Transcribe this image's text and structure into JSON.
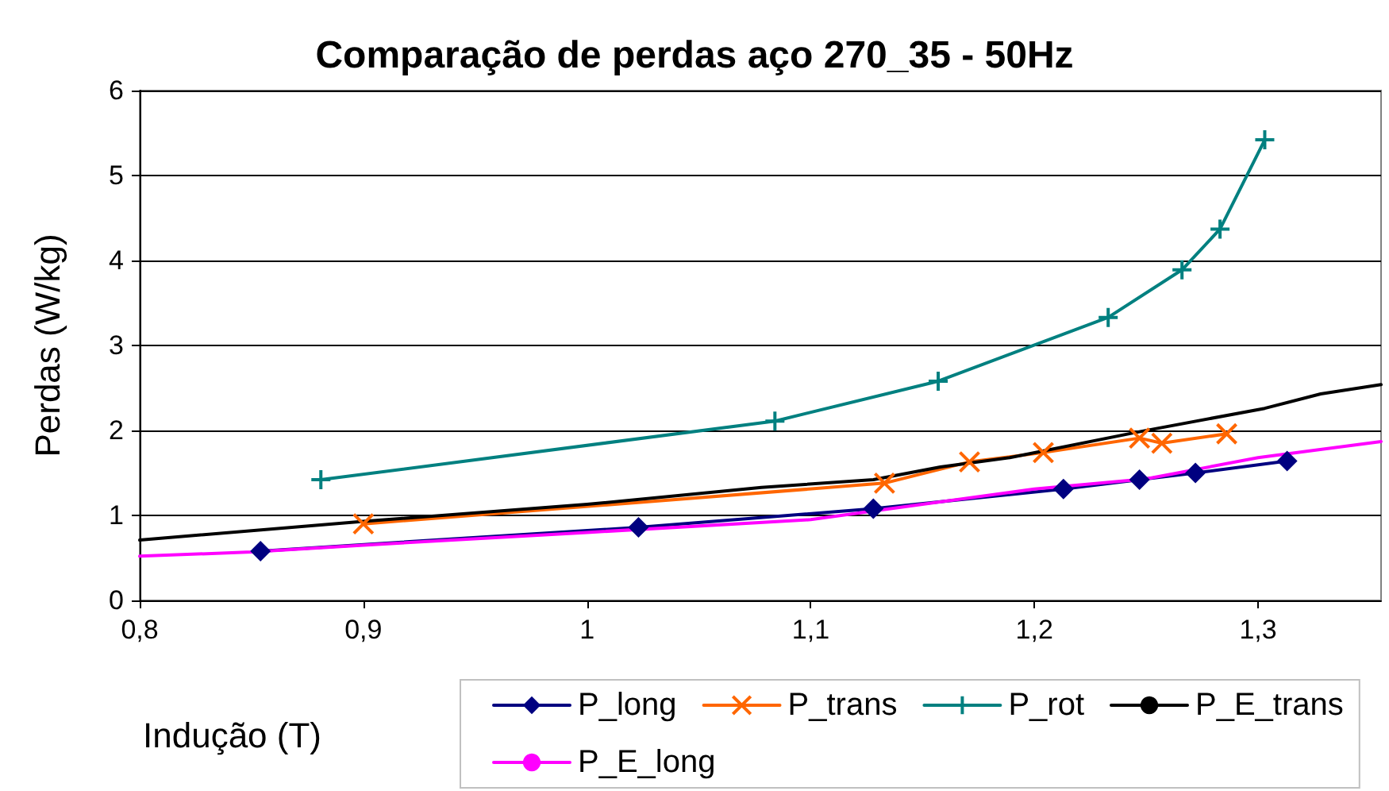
{
  "chart_data": {
    "type": "line",
    "title": "Comparação de perdas aço 270_35 - 50Hz",
    "xlabel": "Indução (T)",
    "ylabel": "Perdas (W/kg)",
    "xlim": [
      0.8,
      1.355
    ],
    "xticks": [
      {
        "value": 0.8,
        "label": "0,8"
      },
      {
        "value": 0.9,
        "label": "0,9"
      },
      1,
      {
        "value": 1.1,
        "label": "1,1"
      },
      {
        "value": 1.2,
        "label": "1,2"
      },
      {
        "value": 1.3,
        "label": "1,3"
      }
    ],
    "ylim": [
      0,
      6
    ],
    "yticks": [
      0,
      1,
      2,
      3,
      4,
      5,
      6
    ],
    "grid": "y",
    "legend": "bottom right",
    "series": [
      {
        "name": "P_long",
        "color": "#000080",
        "marker": "diamond",
        "x": [
          0.854,
          1.023,
          1.128,
          1.213,
          1.247,
          1.272,
          1.313
        ],
        "values": [
          0.58,
          0.86,
          1.08,
          1.31,
          1.42,
          1.5,
          1.64
        ]
      },
      {
        "name": "P_trans",
        "color": "#ff6600",
        "marker": "cross",
        "x": [
          0.9,
          1.133,
          1.171,
          1.204,
          1.247,
          1.257,
          1.286
        ],
        "values": [
          0.9,
          1.38,
          1.63,
          1.74,
          1.91,
          1.85,
          1.96
        ]
      },
      {
        "name": "P_rot",
        "color": "#008080",
        "marker": "plus",
        "x": [
          0.881,
          1.084,
          1.157,
          1.233,
          1.266,
          1.283,
          1.303
        ],
        "values": [
          1.42,
          2.11,
          2.58,
          3.33,
          3.89,
          4.37,
          5.42
        ]
      },
      {
        "name": "P_E_trans",
        "color": "#000000",
        "marker": "none",
        "x": [
          0.8,
          0.9,
          1.0,
          1.078,
          1.128,
          1.158,
          1.189,
          1.246,
          1.303,
          1.328,
          1.355
        ],
        "values": [
          0.71,
          0.93,
          1.13,
          1.33,
          1.42,
          1.57,
          1.68,
          1.98,
          2.26,
          2.43,
          2.54
        ]
      },
      {
        "name": "P_E_long",
        "color": "#ff00ff",
        "marker": "none",
        "x": [
          0.8,
          0.85,
          0.9,
          1.0,
          1.1,
          1.2,
          1.25,
          1.3,
          1.355
        ],
        "values": [
          0.52,
          0.57,
          0.65,
          0.8,
          0.95,
          1.31,
          1.43,
          1.68,
          1.87
        ]
      }
    ]
  }
}
